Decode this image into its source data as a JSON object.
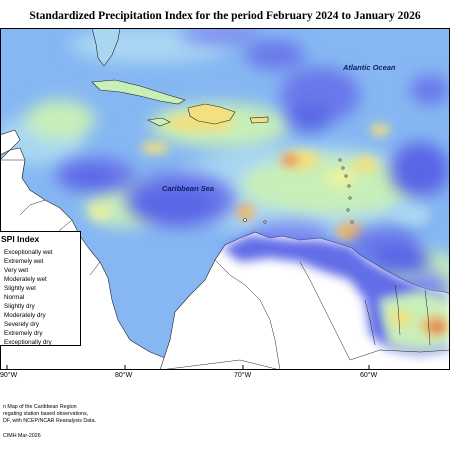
{
  "title": "Standardized Precipitation Index for the period February 2024 to January 2026",
  "labels": {
    "atlantic": "Atlantic Ocean",
    "caribbean": "Caribbean Sea"
  },
  "legend": {
    "title": "SPI Index",
    "items": [
      {
        "label": "Exceptionally wet",
        "color": "#3b3fd0"
      },
      {
        "label": "Extremely wet",
        "color": "#5a66e6"
      },
      {
        "label": "Very wet",
        "color": "#7f8ff0"
      },
      {
        "label": "Moderately wet",
        "color": "#7fb0f5"
      },
      {
        "label": "Slightly wet",
        "color": "#a9d7f2"
      },
      {
        "label": "Normal",
        "color": "#c8efb8"
      },
      {
        "label": "Slightly dry",
        "color": "#e9f2a0"
      },
      {
        "label": "Moderately dry",
        "color": "#f3e07e"
      },
      {
        "label": "Severely dry",
        "color": "#f2b766"
      },
      {
        "label": "Extremely dry",
        "color": "#e98a5c"
      },
      {
        "label": "Exceptionally dry",
        "color": "#d34b4b"
      }
    ]
  },
  "longitude_labels": [
    "90°W",
    "80°W",
    "70°W",
    "60°W"
  ],
  "footer": {
    "line1": "n Map of the Caribbean Region",
    "line2": "regating station based observations,",
    "line3": "DF, with NCEP/NCAR Reanalysis Data.",
    "credit": "CIMH Mar-2026"
  }
}
